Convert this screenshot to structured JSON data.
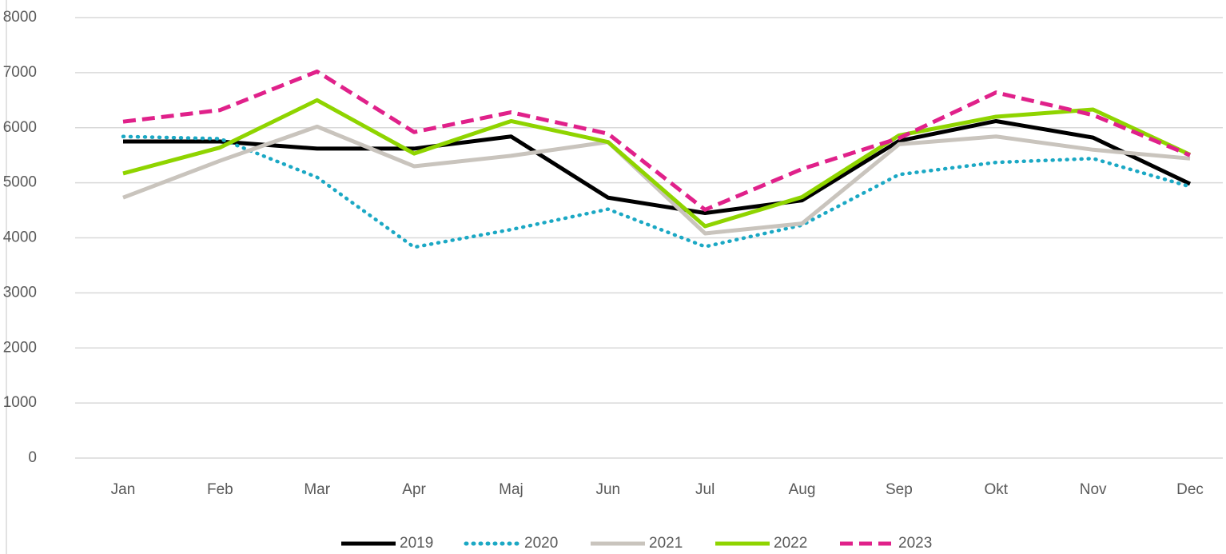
{
  "chart_data": {
    "type": "line",
    "categories": [
      "Jan",
      "Feb",
      "Mar",
      "Apr",
      "Maj",
      "Jun",
      "Jul",
      "Aug",
      "Sep",
      "Okt",
      "Nov",
      "Dec"
    ],
    "series": [
      {
        "name": "2019",
        "color": "#000000",
        "line_style": "solid",
        "values": [
          5750,
          5750,
          5620,
          5620,
          5840,
          4730,
          4450,
          4680,
          5760,
          6120,
          5820,
          4980
        ]
      },
      {
        "name": "2020",
        "color": "#1ba8c4",
        "line_style": "dotted",
        "values": [
          5840,
          5800,
          5100,
          3830,
          4150,
          4520,
          3840,
          4230,
          5150,
          5370,
          5440,
          4930
        ]
      },
      {
        "name": "2021",
        "color": "#c9c4bd",
        "line_style": "solid",
        "values": [
          4730,
          5400,
          6020,
          5300,
          5490,
          5740,
          4080,
          4260,
          5700,
          5840,
          5600,
          5440
        ]
      },
      {
        "name": "2022",
        "color": "#8fd400",
        "line_style": "solid",
        "values": [
          5170,
          5640,
          6500,
          5530,
          6120,
          5740,
          4210,
          4740,
          5860,
          6200,
          6330,
          5510
        ]
      },
      {
        "name": "2023",
        "color": "#e0218a",
        "line_style": "dashed",
        "values": [
          6110,
          6320,
          7020,
          5920,
          6280,
          5890,
          4510,
          5250,
          5810,
          6640,
          6230,
          5500
        ]
      }
    ],
    "ylim": [
      0,
      8000
    ],
    "yticks": [
      0,
      1000,
      2000,
      3000,
      4000,
      5000,
      6000,
      7000,
      8000
    ],
    "grid": true,
    "legend": "bottom"
  }
}
